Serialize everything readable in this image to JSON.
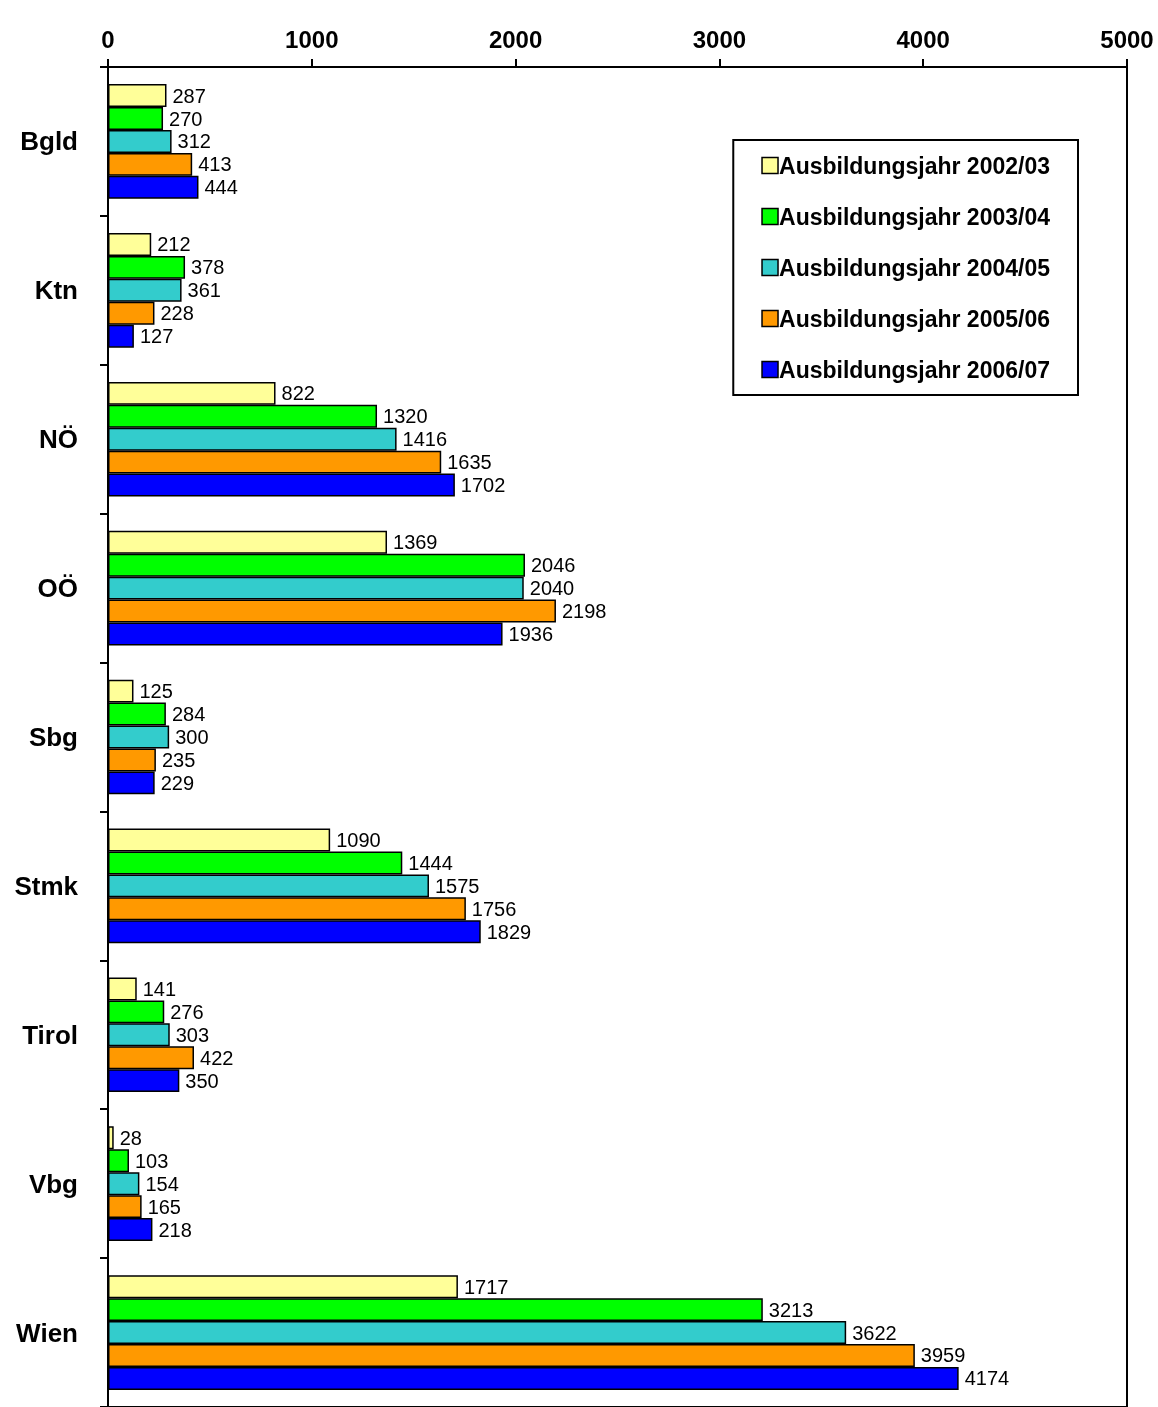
{
  "chart_data": {
    "type": "bar",
    "orientation": "horizontal",
    "categories": [
      "Bgld",
      "Ktn",
      "NÖ",
      "OÖ",
      "Sbg",
      "Stmk",
      "Tirol",
      "Vbg",
      "Wien"
    ],
    "series": [
      {
        "name": "Ausbildungsjahr 2002/03",
        "color": "#ffff99",
        "values": [
          287,
          212,
          822,
          1369,
          125,
          1090,
          141,
          28,
          1717
        ]
      },
      {
        "name": "Ausbildungsjahr 2003/04",
        "color": "#00ff00",
        "values": [
          270,
          378,
          1320,
          2046,
          284,
          1444,
          276,
          103,
          3213
        ]
      },
      {
        "name": "Ausbildungsjahr 2004/05",
        "color": "#33cccc",
        "values": [
          312,
          361,
          1416,
          2040,
          300,
          1575,
          303,
          154,
          3622
        ]
      },
      {
        "name": "Ausbildungsjahr 2005/06",
        "color": "#ff9900",
        "values": [
          413,
          228,
          1635,
          2198,
          235,
          1756,
          422,
          165,
          3959
        ]
      },
      {
        "name": "Ausbildungsjahr 2006/07",
        "color": "#0000ff",
        "values": [
          444,
          127,
          1702,
          1936,
          229,
          1829,
          350,
          218,
          4174
        ]
      }
    ],
    "xlim": [
      0,
      5000
    ],
    "xticks": [
      0,
      1000,
      2000,
      3000,
      4000,
      5000
    ],
    "data_labels": true,
    "grid": false,
    "legend": "top right"
  }
}
